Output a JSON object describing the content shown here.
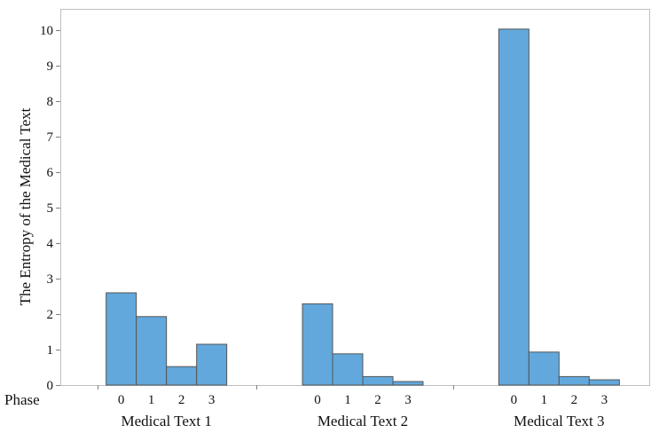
{
  "chart_data": {
    "type": "bar",
    "ylabel": "The Entropy of the Medical Text",
    "x_inner_label": "Phase",
    "ylim": [
      0,
      10.6
    ],
    "yticks": [
      0,
      1,
      2,
      3,
      4,
      5,
      6,
      7,
      8,
      9,
      10
    ],
    "grid": false,
    "groups": [
      {
        "name": "Medical Text 1",
        "categories": [
          "0",
          "1",
          "2",
          "3"
        ],
        "values": [
          2.6,
          1.93,
          0.52,
          1.15
        ]
      },
      {
        "name": "Medical Text 2",
        "categories": [
          "0",
          "1",
          "2",
          "3"
        ],
        "values": [
          2.29,
          0.88,
          0.24,
          0.1
        ]
      },
      {
        "name": "Medical Text 3",
        "categories": [
          "0",
          "1",
          "2",
          "3"
        ],
        "values": [
          10.03,
          0.93,
          0.24,
          0.15
        ]
      }
    ],
    "colors": {
      "bar_fill": "#62a8dc",
      "bar_stroke": "#555555"
    }
  }
}
